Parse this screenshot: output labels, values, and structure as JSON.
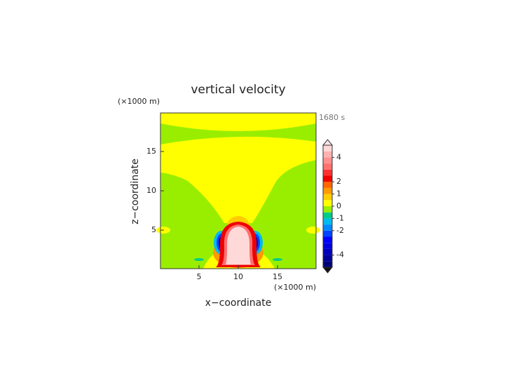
{
  "chart_data": {
    "type": "contour",
    "title": "vertical velocity",
    "x_label": "x−coordinate",
    "y_label": "z−coordinate",
    "x_unit": "(×1000 m)",
    "y_unit": "(×1000 m)",
    "time_label": "1680 s",
    "xlim": [
      0.1,
      19.9
    ],
    "ylim": [
      0.1,
      19.9
    ],
    "xticks": [
      5,
      10,
      15
    ],
    "yticks": [
      5,
      10,
      15
    ],
    "levels": [
      -5,
      -4.5,
      -4,
      -3.5,
      -3,
      -2.5,
      -2,
      -1.5,
      -1,
      -0.5,
      0,
      0.5,
      1,
      1.5,
      2,
      2.5,
      3,
      3.5,
      4,
      4.5,
      5
    ],
    "colors": [
      "#000077",
      "#000099",
      "#0000bb",
      "#0000dd",
      "#0000ff",
      "#0044ff",
      "#0088ff",
      "#00bbee",
      "#00cc88",
      "#99ee00",
      "#ffff00",
      "#ffcc00",
      "#ff9900",
      "#ff6600",
      "#ee0000",
      "#ff3030",
      "#ff7070",
      "#ff9090",
      "#ffb0b0",
      "#ffd8d8"
    ],
    "extend_colors": [
      "#111111",
      "#ffe8e8"
    ],
    "cbticks": [
      -4,
      -2,
      -1,
      0,
      1,
      2,
      4
    ]
  }
}
